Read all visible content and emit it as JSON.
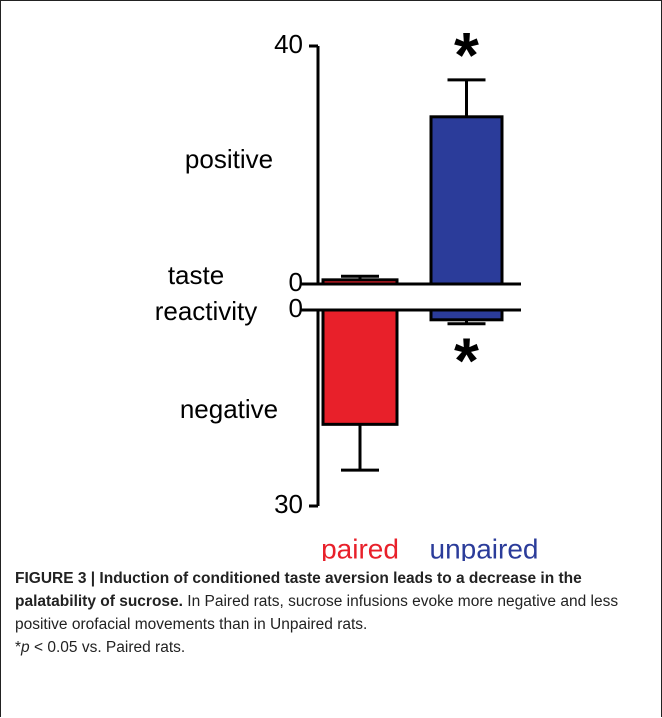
{
  "chart_data": {
    "type": "bar",
    "categories": [
      "paired",
      "unpaired"
    ],
    "colors": [
      "#e8202a",
      "#2b3c9a"
    ],
    "y_label_lines": [
      "taste",
      "reactivity"
    ],
    "panels": [
      {
        "label": "positive",
        "direction": "up",
        "values": [
          0.7,
          28.1
        ],
        "errors": [
          0.6,
          6.2
        ],
        "ylim": [
          0,
          40
        ],
        "yticks": [
          0,
          40
        ],
        "significance": [
          null,
          "*"
        ]
      },
      {
        "label": "negative",
        "direction": "down",
        "values": [
          17.5,
          1.5
        ],
        "errors": [
          7,
          0.6
        ],
        "ylim": [
          0,
          30
        ],
        "yticks": [
          0,
          30
        ],
        "significance": [
          null,
          "*"
        ]
      }
    ]
  },
  "caption": {
    "title": "FIGURE 3 | Induction of conditioned taste aversion leads to a decrease in the palatability of sucrose.",
    "text": "In Paired rats, sucrose infusions evoke more negative and less positive orofacial movements than in Unpaired rats.",
    "footnote_mark": "*",
    "footnote_symbol": "p",
    "footnote_text": "< 0.05 vs. Paired rats."
  }
}
